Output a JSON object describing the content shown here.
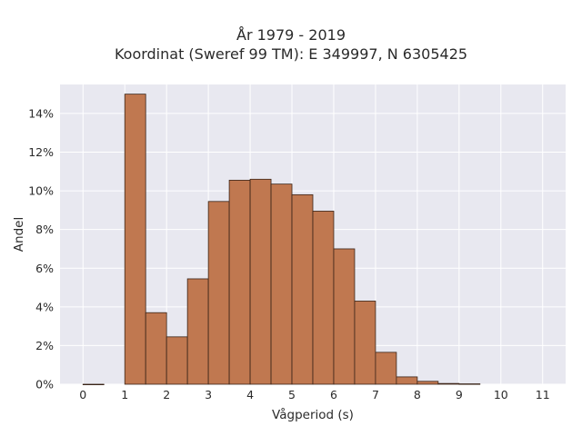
{
  "chart_data": {
    "type": "bar",
    "title": "År 1979 - 2019",
    "subtitle": "Koordinat (Sweref 99 TM): E 349997, N 6305425",
    "xlabel": "Vågperiod (s)",
    "ylabel": "Andel",
    "bin_width": 0.5,
    "bins": [
      {
        "x0": 0.0,
        "x1": 0.5,
        "value": 0.0
      },
      {
        "x0": 1.0,
        "x1": 1.5,
        "value": 15.0
      },
      {
        "x0": 1.5,
        "x1": 2.0,
        "value": 3.7
      },
      {
        "x0": 2.0,
        "x1": 2.5,
        "value": 2.45
      },
      {
        "x0": 2.5,
        "x1": 3.0,
        "value": 5.45
      },
      {
        "x0": 3.0,
        "x1": 3.5,
        "value": 9.45
      },
      {
        "x0": 3.5,
        "x1": 4.0,
        "value": 10.55
      },
      {
        "x0": 4.0,
        "x1": 4.5,
        "value": 10.6
      },
      {
        "x0": 4.5,
        "x1": 5.0,
        "value": 10.35
      },
      {
        "x0": 5.0,
        "x1": 5.5,
        "value": 9.8
      },
      {
        "x0": 5.5,
        "x1": 6.0,
        "value": 8.95
      },
      {
        "x0": 6.0,
        "x1": 6.5,
        "value": 7.0
      },
      {
        "x0": 6.5,
        "x1": 7.0,
        "value": 4.3
      },
      {
        "x0": 7.0,
        "x1": 7.5,
        "value": 1.65
      },
      {
        "x0": 7.5,
        "x1": 8.0,
        "value": 0.38
      },
      {
        "x0": 8.0,
        "x1": 8.5,
        "value": 0.15
      },
      {
        "x0": 8.5,
        "x1": 9.0,
        "value": 0.04
      },
      {
        "x0": 9.0,
        "x1": 9.5,
        "value": 0.02
      }
    ],
    "xlim": [
      -0.55,
      11.55
    ],
    "ylim": [
      0,
      15.5
    ],
    "xticks": [
      0,
      1,
      2,
      3,
      4,
      5,
      6,
      7,
      8,
      9,
      10,
      11
    ],
    "yticks": [
      0,
      2,
      4,
      6,
      8,
      10,
      12,
      14
    ],
    "ytick_suffix": "%",
    "grid": true,
    "legend": "none",
    "colors": {
      "bar_fill": "#c07850",
      "bar_edge": "#3a2418",
      "plot_background": "#e8e8f0",
      "grid": "#ffffff"
    }
  }
}
